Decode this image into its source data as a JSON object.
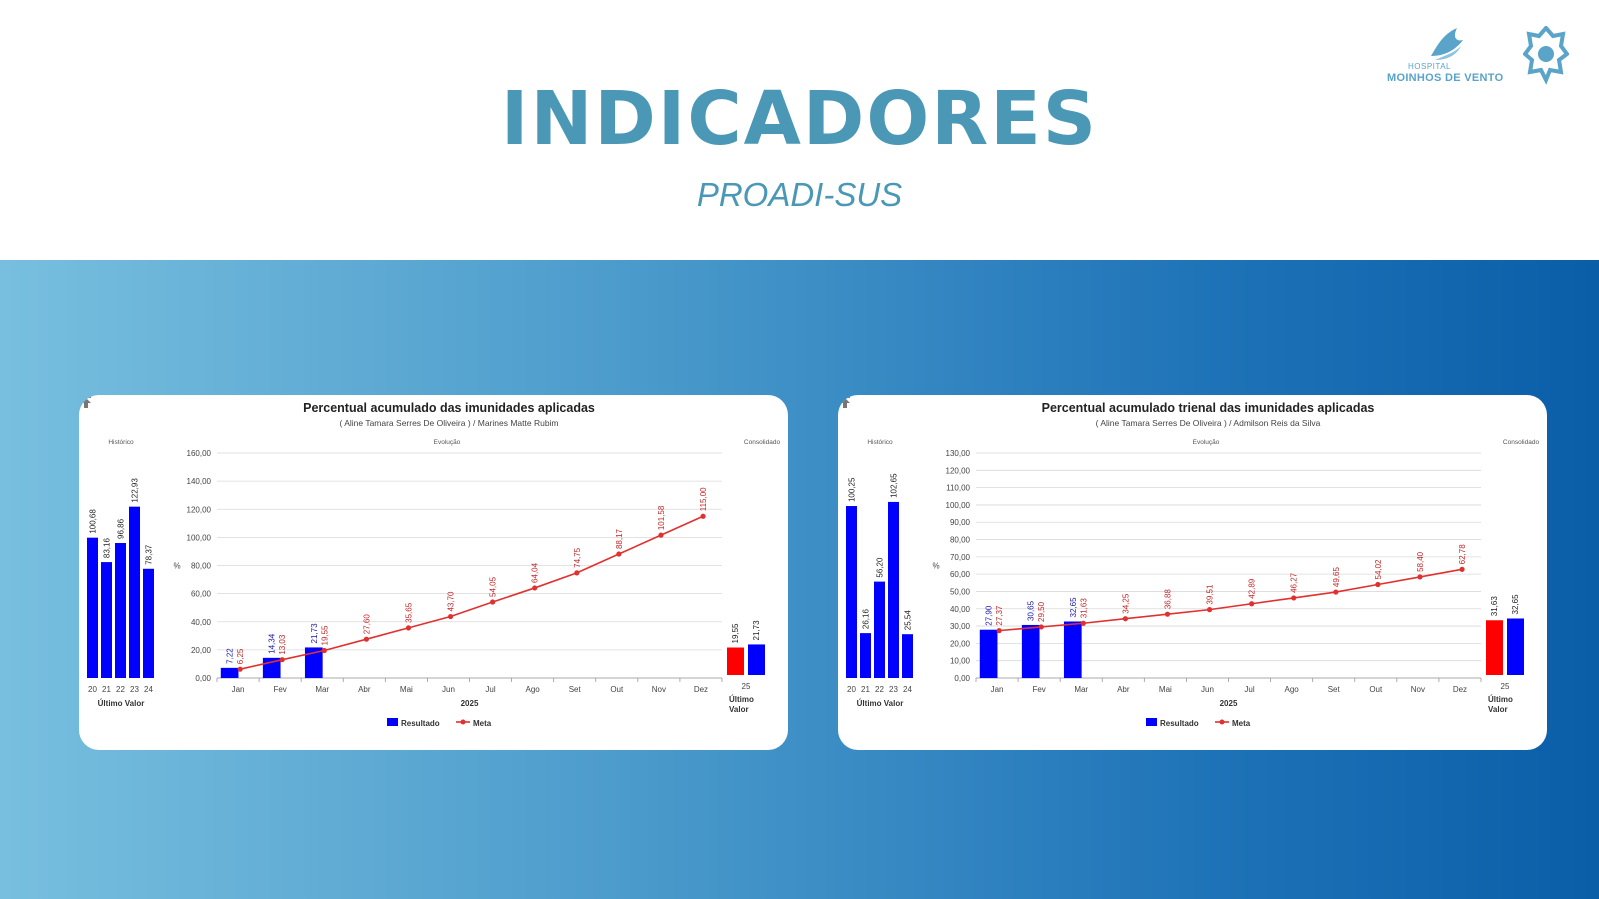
{
  "page": {
    "title": "INDICADORES",
    "subtitle": "PROADI-SUS",
    "logo": {
      "small": "HOSPITAL",
      "big": "MOINHOS DE VENTO",
      "icon": "wing-logo-icon",
      "symbol": "gear-symbol-icon"
    }
  },
  "colors": {
    "title": "#4a98b6",
    "resultado": "#0000ff",
    "meta": "#e0312f",
    "consolidado_meta": "#ff0000",
    "band_start": "#78bfdf",
    "band_end": "#0a5ea8"
  },
  "sections": {
    "historico": "Histórico",
    "evolucao": "Evolução",
    "consolidado": "Consolidado"
  },
  "chart_data": [
    {
      "type": "bar",
      "title": "Percentual acumulado das imunidades aplicadas",
      "subtitle": "( Aline Tamara Serres De Oliveira ) / Marines Matte Rubim",
      "historico": {
        "categories": [
          "20",
          "21",
          "22",
          "23",
          "24"
        ],
        "values": [
          100.68,
          83.16,
          96.86,
          122.93,
          78.37
        ],
        "labels": [
          "100,68",
          "83,16",
          "96,86",
          "122,93",
          "78,37"
        ],
        "xlabel": "Último Valor",
        "ylim": [
          0,
          160
        ]
      },
      "evolucao": {
        "categories": [
          "Jan",
          "Fev",
          "Mar",
          "Abr",
          "Mai",
          "Jun",
          "Jul",
          "Ago",
          "Set",
          "Out",
          "Nov",
          "Dez"
        ],
        "xlabel": "2025",
        "ylabel": "%",
        "ylim": [
          0,
          160
        ],
        "yticks": [
          "0,00",
          "20,00",
          "40,00",
          "60,00",
          "80,00",
          "100,00",
          "120,00",
          "140,00",
          "160,00"
        ],
        "series": [
          {
            "name": "Resultado",
            "type": "bar",
            "values": [
              7.22,
              14.34,
              21.73
            ],
            "labels": [
              "7,22",
              "14,34",
              "21,73"
            ]
          },
          {
            "name": "Meta",
            "type": "line",
            "values": [
              6.25,
              13.03,
              19.55,
              27.6,
              35.65,
              43.7,
              54.05,
              64.04,
              74.75,
              88.17,
              101.58,
              115.0
            ],
            "labels": [
              "6,25",
              "13,03",
              "19,55",
              "27,60",
              "35,65",
              "43,70",
              "54,05",
              "64,04",
              "74,75",
              "88,17",
              "101,58",
              "115,00"
            ]
          }
        ],
        "legend": "bottom-center"
      },
      "consolidado": {
        "category": "25",
        "meta": 19.55,
        "meta_label": "19,55",
        "resultado": 21.73,
        "resultado_label": "21,73",
        "xlabel": "Último Valor"
      }
    },
    {
      "type": "bar",
      "title": "Percentual acumulado trienal das imunidades aplicadas",
      "subtitle": "( Aline Tamara Serres De Oliveira ) / Admilson Reis da Silva",
      "historico": {
        "categories": [
          "20",
          "21",
          "22",
          "23",
          "24"
        ],
        "values": [
          100.25,
          26.16,
          56.2,
          102.65,
          25.54
        ],
        "labels": [
          "100,25",
          "26,16",
          "56,20",
          "102,65",
          "25,54"
        ],
        "xlabel": "Último Valor",
        "ylim": [
          0,
          130
        ]
      },
      "evolucao": {
        "categories": [
          "Jan",
          "Fev",
          "Mar",
          "Abr",
          "Mai",
          "Jun",
          "Jul",
          "Ago",
          "Set",
          "Out",
          "Nov",
          "Dez"
        ],
        "xlabel": "2025",
        "ylabel": "%",
        "ylim": [
          0,
          130
        ],
        "yticks": [
          "0,00",
          "10,00",
          "20,00",
          "30,00",
          "40,00",
          "50,00",
          "60,00",
          "70,00",
          "80,00",
          "90,00",
          "100,00",
          "110,00",
          "120,00",
          "130,00"
        ],
        "series": [
          {
            "name": "Resultado",
            "type": "bar",
            "values": [
              27.9,
              30.65,
              32.65
            ],
            "labels": [
              "27,90",
              "30,65",
              "32,65"
            ]
          },
          {
            "name": "Meta",
            "type": "line",
            "values": [
              27.37,
              29.5,
              31.63,
              34.25,
              36.88,
              39.51,
              42.89,
              46.27,
              49.65,
              54.02,
              58.4,
              62.78
            ],
            "labels": [
              "27,37",
              "29,50",
              "31,63",
              "34,25",
              "36,88",
              "39,51",
              "42,89",
              "46,27",
              "49,65",
              "54,02",
              "58,40",
              "62,78"
            ]
          }
        ],
        "legend": "bottom-center"
      },
      "consolidado": {
        "category": "25",
        "meta": 31.63,
        "meta_label": "31,63",
        "resultado": 32.65,
        "resultado_label": "32,65",
        "xlabel": "Último Valor"
      }
    }
  ]
}
